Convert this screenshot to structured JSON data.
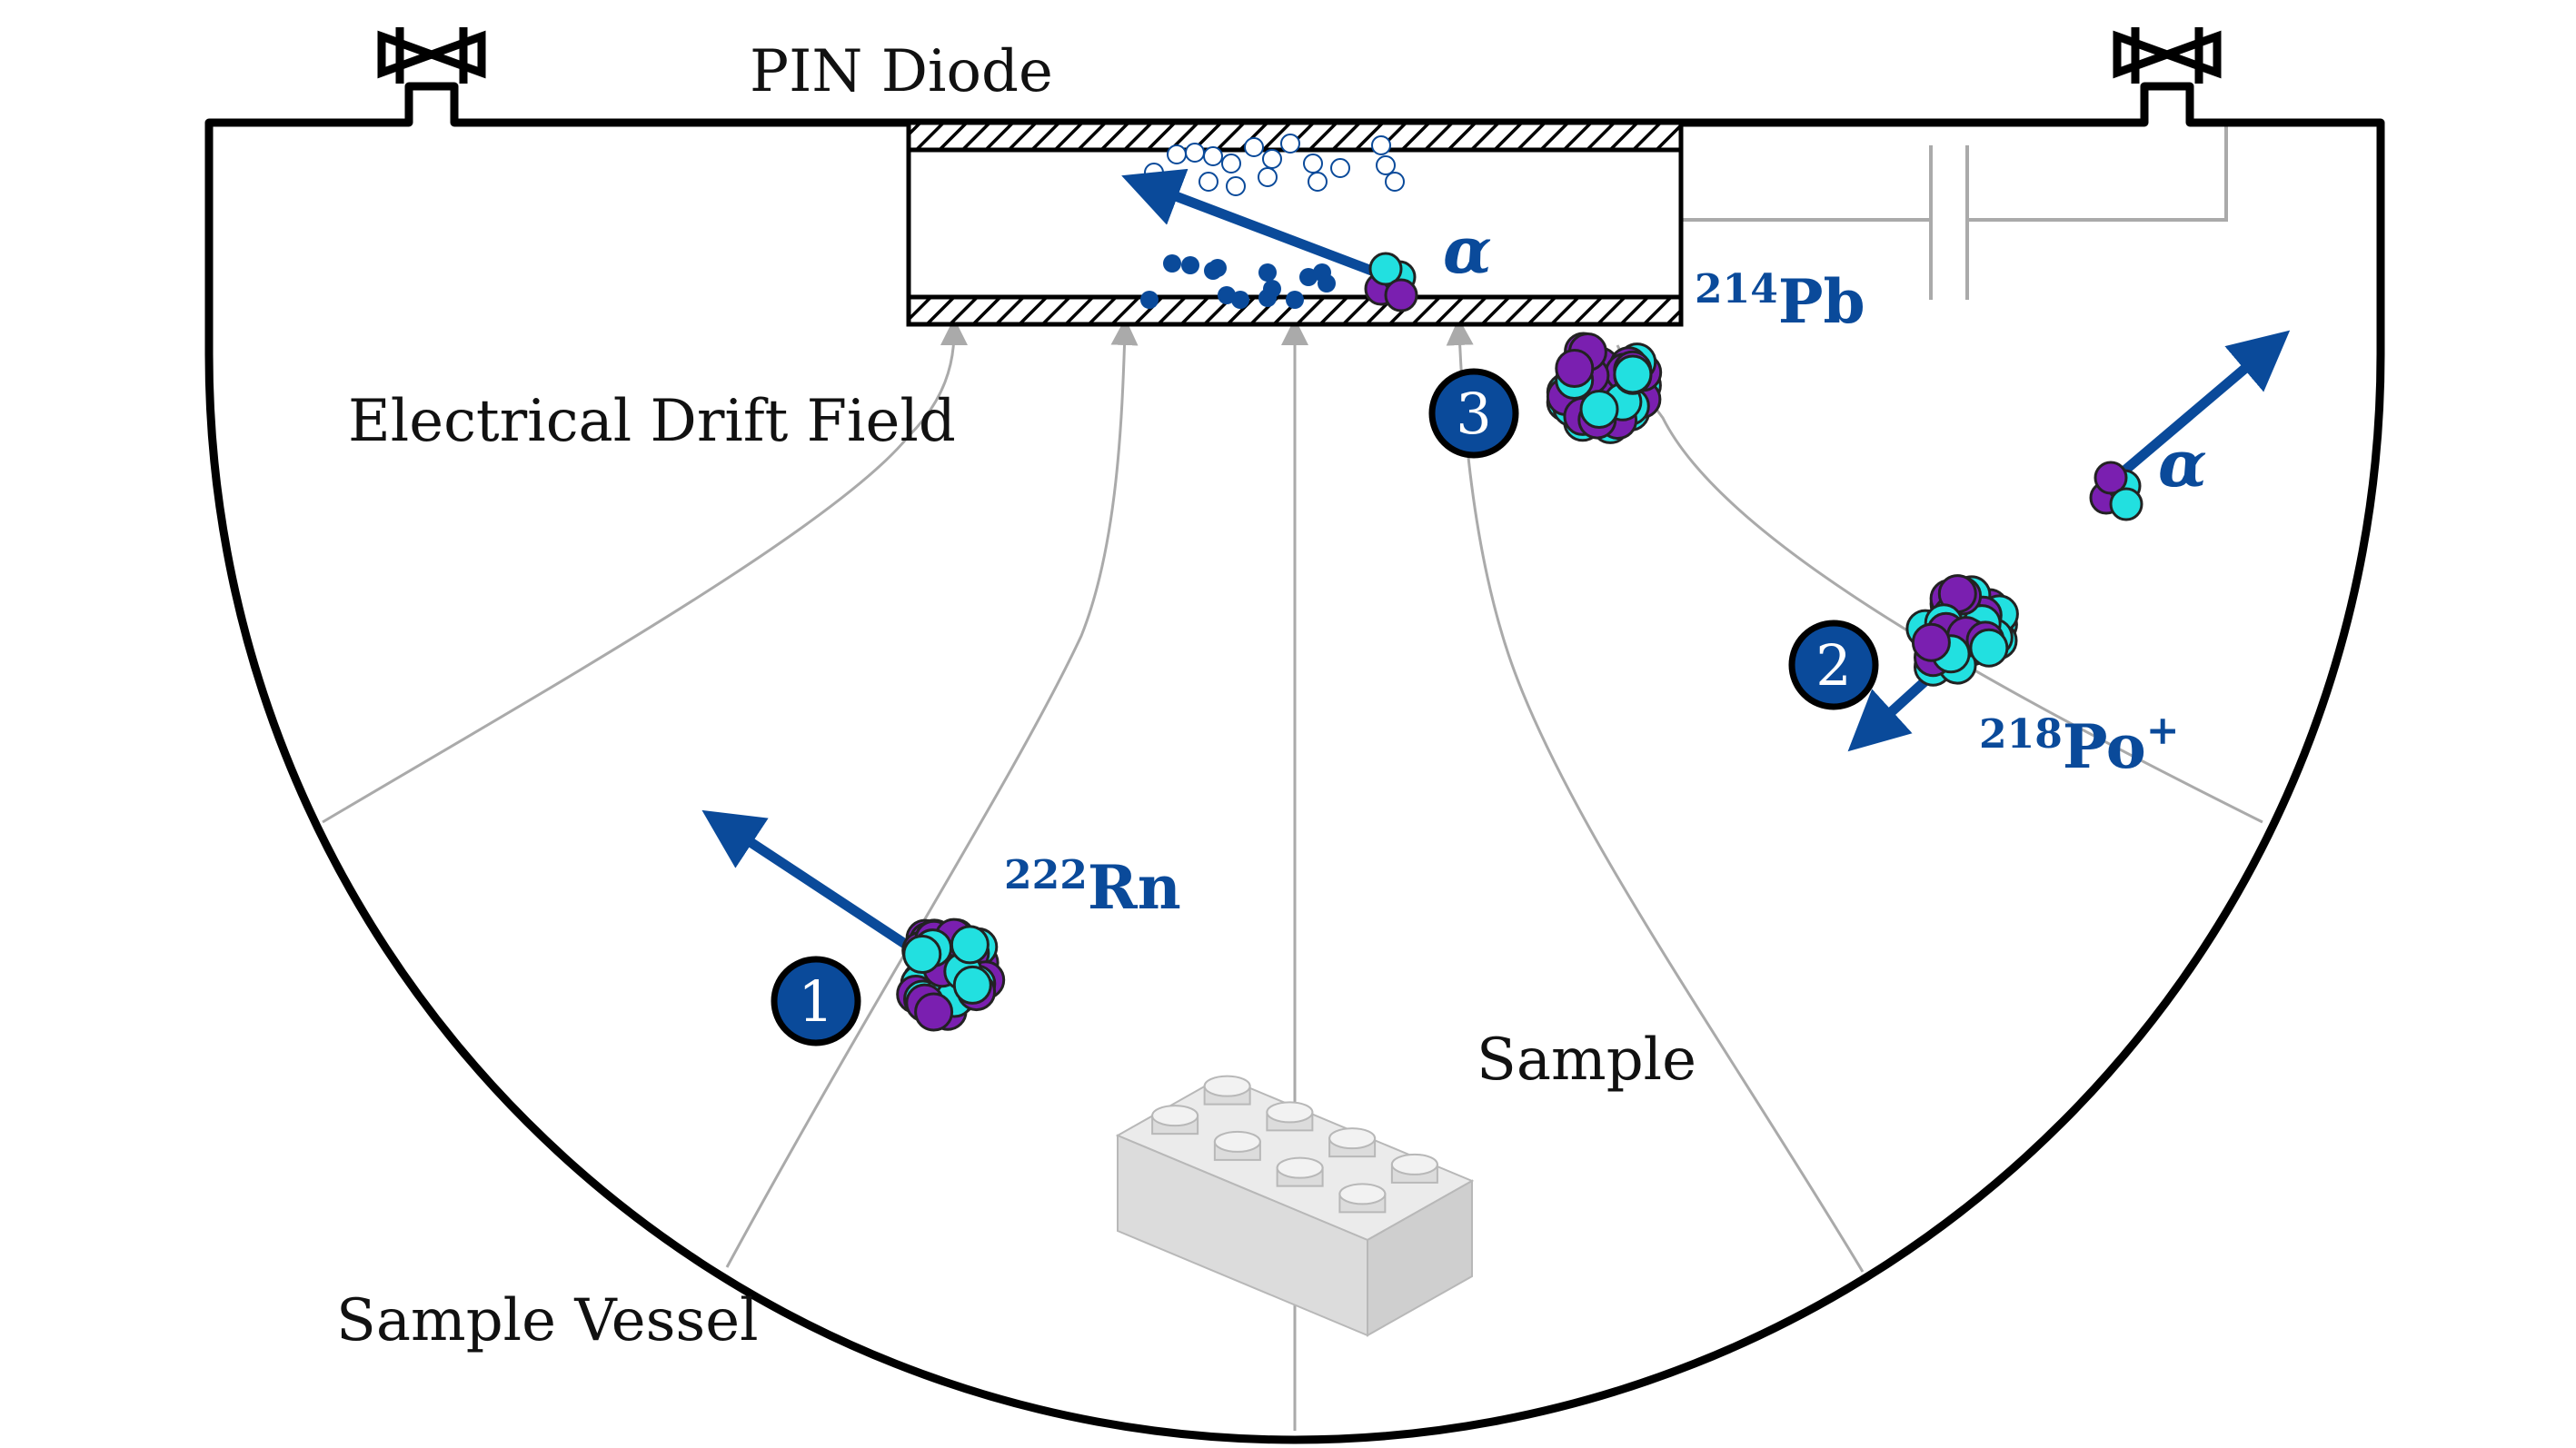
{
  "labels": {
    "pin_diode": "PIN Diode",
    "drift_field": "Electrical Drift Field",
    "sample": "Sample",
    "sample_vessel": "Sample Vessel"
  },
  "isotopes": {
    "rn222": {
      "mass": "222",
      "symbol": "Rn"
    },
    "po218": {
      "mass": "218",
      "symbol": "Po",
      "charge": "+"
    },
    "pb214": {
      "mass": "214",
      "symbol": "Pb"
    }
  },
  "alpha_symbol": "α",
  "steps": [
    "1",
    "2",
    "3"
  ],
  "colors": {
    "accent_blue": "#0a4a9a",
    "proton_cyan": "#22e0e0",
    "neutron_purple": "#7a1fb0",
    "field_line_gray": "#aaaaaa",
    "vessel_black": "#000000",
    "brick_gray": "#e8e8e8"
  },
  "icons": {
    "valve_left": "valve-icon",
    "valve_right": "valve-icon",
    "sample_brick": "lego-brick-icon"
  }
}
